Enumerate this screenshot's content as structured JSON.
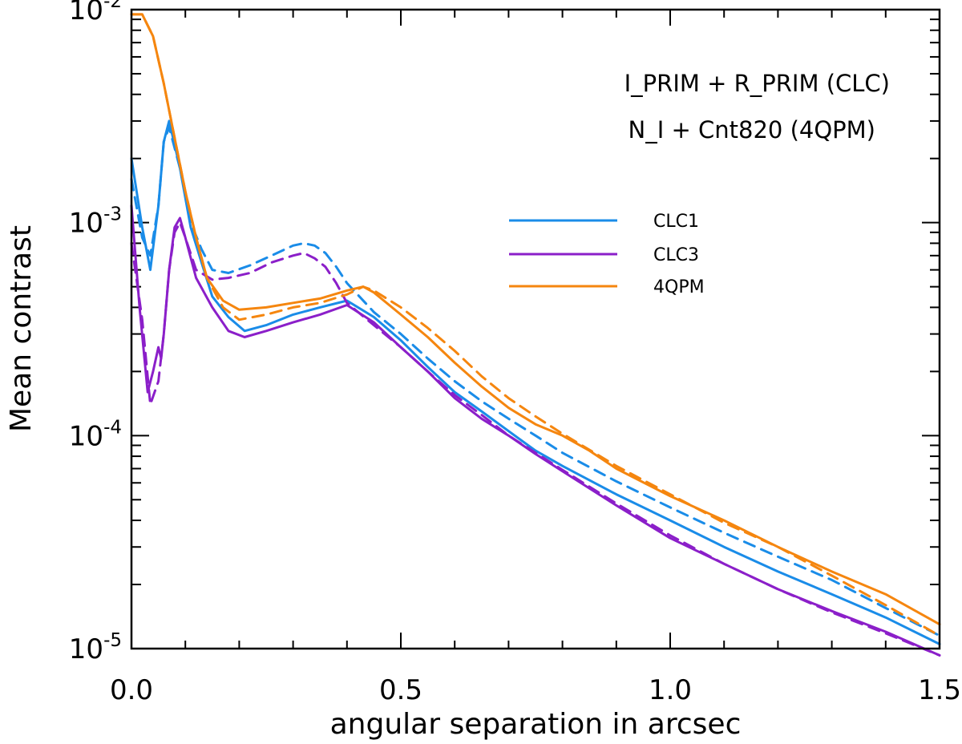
{
  "chart_data": {
    "type": "line",
    "xlabel": "angular separation in arcsec",
    "ylabel": "Mean contrast",
    "xlim": [
      0,
      1.5
    ],
    "ylim": [
      1e-05,
      0.01
    ],
    "yscale": "log",
    "x_ticks": [
      0.0,
      0.5,
      1.0,
      1.5
    ],
    "x_tick_labels": [
      "0.0",
      "0.5",
      "1.0",
      "1.5"
    ],
    "y_ticks": [
      {
        "base": "10",
        "exp": "-5",
        "value": 1e-05
      },
      {
        "base": "10",
        "exp": "-4",
        "value": 0.0001
      },
      {
        "base": "10",
        "exp": "-3",
        "value": 0.001
      },
      {
        "base": "10",
        "exp": "-2",
        "value": 0.01
      }
    ],
    "annotations": [
      "I_PRIM + R_PRIM (CLC)",
      "N_I + Cnt820 (4QPM)"
    ],
    "legend_position": "center-right",
    "series": [
      {
        "name": "CLC1",
        "color": "#1a8ce8",
        "style": "solid",
        "in_legend": true,
        "x": [
          0.0,
          0.02,
          0.035,
          0.05,
          0.06,
          0.07,
          0.09,
          0.11,
          0.13,
          0.15,
          0.18,
          0.21,
          0.25,
          0.3,
          0.35,
          0.4,
          0.45,
          0.5,
          0.55,
          0.6,
          0.65,
          0.7,
          0.75,
          0.8,
          0.9,
          1.0,
          1.1,
          1.2,
          1.3,
          1.4,
          1.5
        ],
        "y": [
          0.002,
          0.00095,
          0.0006,
          0.0012,
          0.0024,
          0.003,
          0.0018,
          0.00095,
          0.00065,
          0.00045,
          0.00036,
          0.00031,
          0.00033,
          0.00037,
          0.0004,
          0.00043,
          0.00036,
          0.00028,
          0.00021,
          0.00016,
          0.00013,
          0.000105,
          8.5e-05,
          7.2e-05,
          5.3e-05,
          4e-05,
          3e-05,
          2.3e-05,
          1.8e-05,
          1.4e-05,
          1.05e-05
        ]
      },
      {
        "name": "CLC1 (dashed)",
        "color": "#1a8ce8",
        "style": "dashed",
        "in_legend": false,
        "x": [
          0.0,
          0.02,
          0.035,
          0.05,
          0.06,
          0.07,
          0.09,
          0.11,
          0.13,
          0.15,
          0.18,
          0.22,
          0.26,
          0.3,
          0.32,
          0.34,
          0.36,
          0.38,
          0.4,
          0.45,
          0.5,
          0.55,
          0.6,
          0.65,
          0.7,
          0.75,
          0.8,
          0.9,
          1.0,
          1.1,
          1.2,
          1.3,
          1.4,
          1.5
        ],
        "y": [
          0.0016,
          0.00085,
          0.0007,
          0.0012,
          0.0024,
          0.0028,
          0.0018,
          0.001,
          0.00075,
          0.0006,
          0.00058,
          0.00063,
          0.0007,
          0.00078,
          0.0008,
          0.00078,
          0.00072,
          0.00062,
          0.00052,
          0.00038,
          0.0003,
          0.00023,
          0.00018,
          0.000145,
          0.00012,
          0.0001,
          8.3e-05,
          6.1e-05,
          4.6e-05,
          3.5e-05,
          2.7e-05,
          2.1e-05,
          1.55e-05,
          1.15e-05
        ]
      },
      {
        "name": "CLC3",
        "color": "#8b1fc9",
        "style": "solid",
        "in_legend": true,
        "x": [
          0.0,
          0.015,
          0.03,
          0.04,
          0.05,
          0.055,
          0.06,
          0.07,
          0.08,
          0.09,
          0.1,
          0.12,
          0.15,
          0.18,
          0.21,
          0.25,
          0.3,
          0.35,
          0.4,
          0.45,
          0.5,
          0.55,
          0.6,
          0.65,
          0.7,
          0.75,
          0.8,
          0.9,
          1.0,
          1.1,
          1.2,
          1.3,
          1.4,
          1.5
        ],
        "y": [
          0.0012,
          0.0004,
          0.00016,
          0.0002,
          0.00026,
          0.00023,
          0.0003,
          0.0006,
          0.00095,
          0.00105,
          0.00085,
          0.00055,
          0.0004,
          0.00031,
          0.00029,
          0.00031,
          0.00034,
          0.00037,
          0.00041,
          0.00034,
          0.00026,
          0.0002,
          0.00015,
          0.00012,
          0.0001,
          8.2e-05,
          6.8e-05,
          4.7e-05,
          3.3e-05,
          2.5e-05,
          1.9e-05,
          1.5e-05,
          1.2e-05,
          9.3e-06
        ]
      },
      {
        "name": "CLC3 (dashed)",
        "color": "#8b1fc9",
        "style": "dashed",
        "in_legend": false,
        "x": [
          0.0,
          0.02,
          0.035,
          0.05,
          0.06,
          0.07,
          0.08,
          0.09,
          0.1,
          0.12,
          0.15,
          0.18,
          0.22,
          0.26,
          0.3,
          0.32,
          0.34,
          0.36,
          0.38,
          0.4,
          0.45,
          0.5,
          0.55,
          0.6,
          0.65,
          0.7,
          0.75,
          0.8,
          0.9,
          1.0,
          1.1,
          1.2,
          1.3,
          1.4,
          1.5
        ],
        "y": [
          0.0008,
          0.00035,
          0.00014,
          0.00018,
          0.0003,
          0.0006,
          0.0009,
          0.001,
          0.00085,
          0.0006,
          0.00054,
          0.00055,
          0.00058,
          0.00065,
          0.0007,
          0.00072,
          0.00068,
          0.00062,
          0.00052,
          0.00042,
          0.00033,
          0.00026,
          0.0002,
          0.000155,
          0.000125,
          0.0001,
          8.3e-05,
          6.9e-05,
          4.8e-05,
          3.4e-05,
          2.5e-05,
          1.9e-05,
          1.48e-05,
          1.18e-05,
          9.3e-06
        ]
      },
      {
        "name": "4QPM",
        "color": "#f5860f",
        "style": "solid",
        "in_legend": true,
        "x": [
          0.0,
          0.02,
          0.04,
          0.06,
          0.08,
          0.1,
          0.12,
          0.14,
          0.17,
          0.2,
          0.25,
          0.3,
          0.35,
          0.4,
          0.43,
          0.45,
          0.5,
          0.55,
          0.6,
          0.65,
          0.7,
          0.75,
          0.8,
          0.85,
          0.9,
          1.0,
          1.1,
          1.2,
          1.3,
          1.4,
          1.5
        ],
        "y": [
          0.0095,
          0.0095,
          0.0075,
          0.0045,
          0.0025,
          0.0014,
          0.00085,
          0.00055,
          0.00043,
          0.00039,
          0.0004,
          0.00042,
          0.00044,
          0.00048,
          0.0005,
          0.00047,
          0.00037,
          0.00029,
          0.00022,
          0.00017,
          0.000135,
          0.000113,
          0.0001,
          8.5e-05,
          7e-05,
          5.2e-05,
          4e-05,
          3e-05,
          2.3e-05,
          1.8e-05,
          1.3e-05
        ]
      },
      {
        "name": "4QPM (dashed)",
        "color": "#f5860f",
        "style": "dashed",
        "in_legend": false,
        "x": [
          0.0,
          0.02,
          0.04,
          0.06,
          0.08,
          0.1,
          0.12,
          0.14,
          0.17,
          0.2,
          0.25,
          0.3,
          0.35,
          0.4,
          0.43,
          0.45,
          0.5,
          0.55,
          0.6,
          0.65,
          0.7,
          0.75,
          0.8,
          0.9,
          1.0,
          1.1,
          1.2,
          1.3,
          1.4,
          1.5
        ],
        "y": [
          0.0095,
          0.0095,
          0.0075,
          0.0045,
          0.0025,
          0.0014,
          0.00085,
          0.00055,
          0.0004,
          0.00035,
          0.00037,
          0.0004,
          0.00042,
          0.00046,
          0.0005,
          0.00048,
          0.0004,
          0.00032,
          0.00025,
          0.00019,
          0.00015,
          0.000123,
          0.000102,
          7.2e-05,
          5.3e-05,
          3.9e-05,
          3e-05,
          2.2e-05,
          1.6e-05,
          1.15e-05
        ]
      }
    ]
  }
}
